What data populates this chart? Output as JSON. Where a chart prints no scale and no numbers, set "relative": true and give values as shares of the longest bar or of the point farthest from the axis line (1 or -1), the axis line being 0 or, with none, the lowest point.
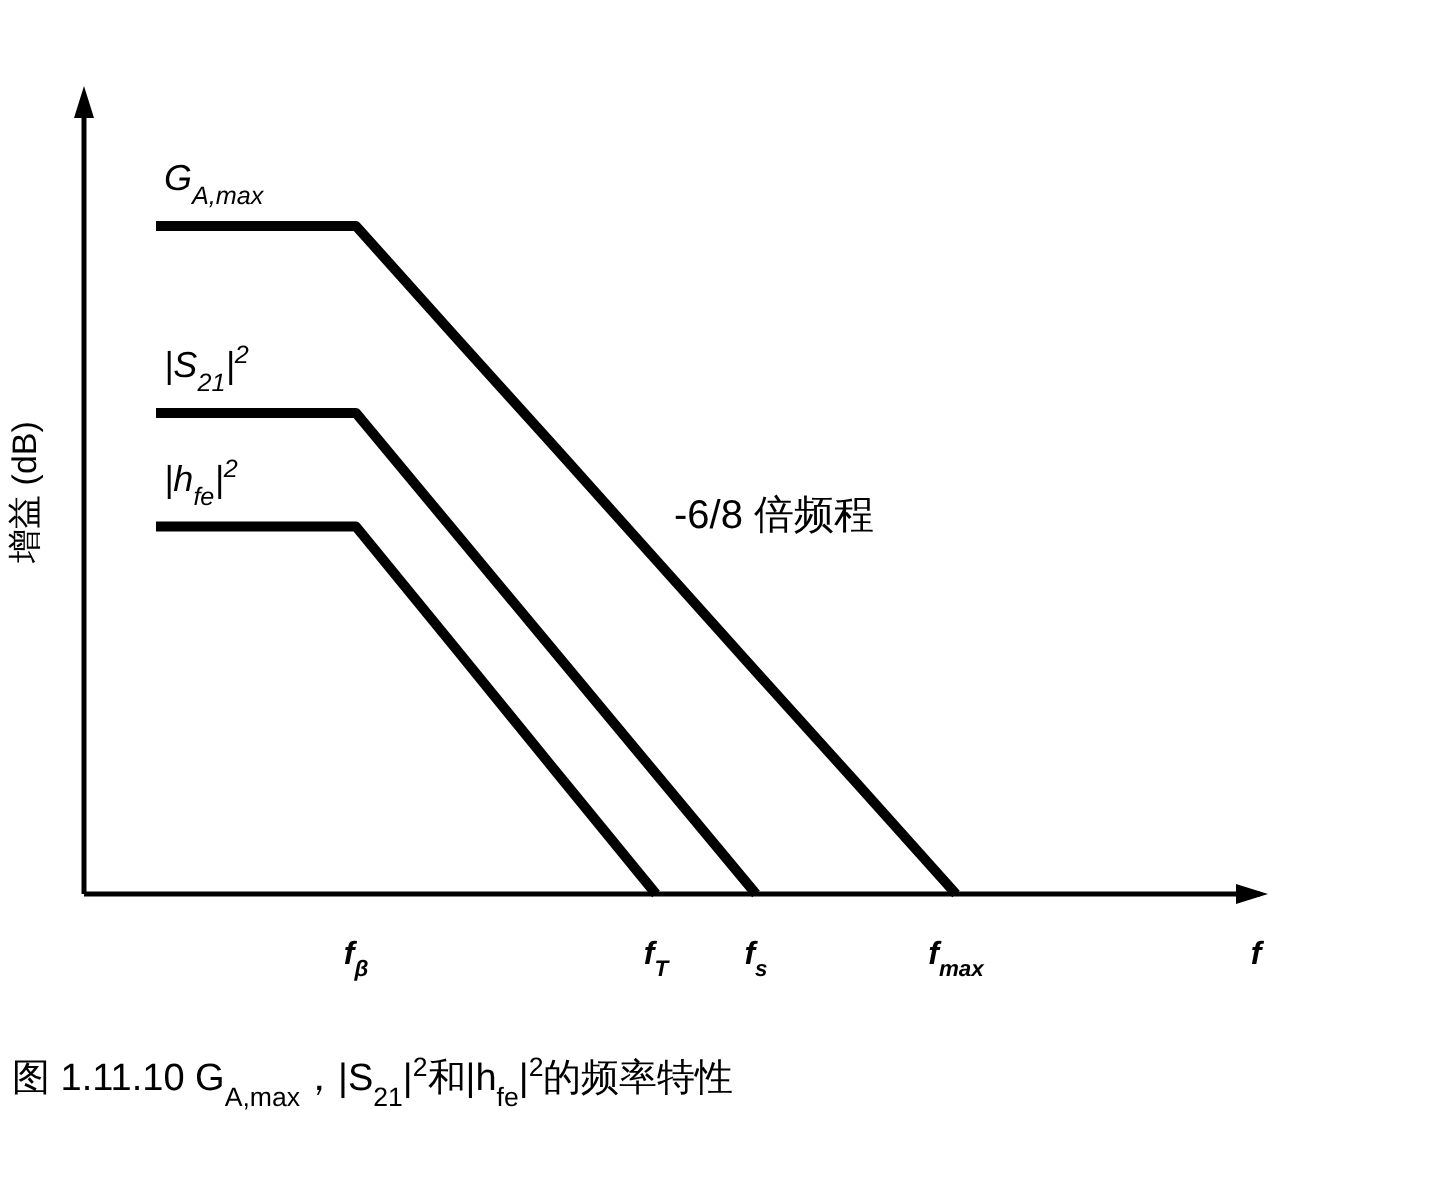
{
  "chart_data": {
    "type": "line",
    "relative": true,
    "xlabel": "f",
    "ylabel": "增益 (dB)",
    "categories": [
      null,
      null,
      "f$_{β}$",
      null,
      null,
      "f$_{T}$",
      "f$_{s}$",
      null,
      "f$_{max}$",
      null,
      null,
      null
    ],
    "series": [
      {
        "name": "G$_{A,max}$",
        "color": "#000000",
        "values": [
          1,
          1,
          1,
          0.833,
          0.667,
          0.5,
          0.333,
          0.167,
          0,
          null,
          null,
          null
        ]
      },
      {
        "name": "|S$_{21}$|$^{2}$",
        "color": "#000000",
        "values": [
          0.72,
          0.72,
          0.72,
          0.54,
          0.36,
          0.18,
          0,
          null,
          null,
          null,
          null,
          null
        ]
      },
      {
        "name": "|h$_{fe}$|$^{2}$",
        "color": "#000000",
        "values": [
          0.55,
          0.55,
          0.55,
          0.367,
          0.183,
          0,
          null,
          null,
          null,
          null,
          null,
          null
        ]
      }
    ],
    "annotations": [
      "-6/8 倍频程",
      "图 1.11.10  G$_{A,max}$，|S$_{21}$|$^{2}$和|h$_{fe}$|$^{2}$的频率特性"
    ],
    "marker": "none",
    "line_style": "solid",
    "grid": false,
    "legend": false
  }
}
